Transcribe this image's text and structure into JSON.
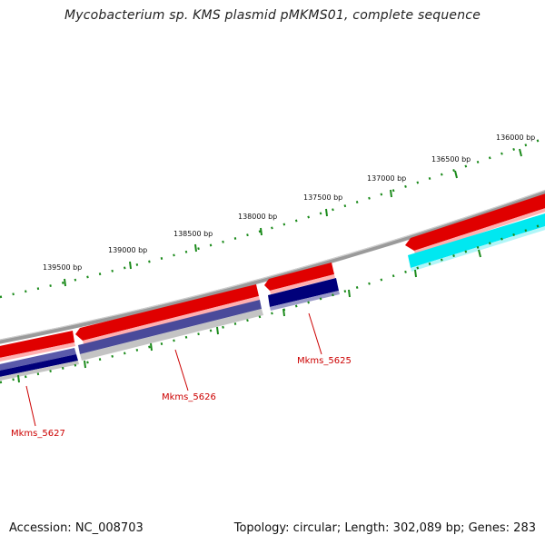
{
  "title": "Mycobacterium sp. KMS plasmid pMKMS01, complete sequence",
  "footer": {
    "accession": "Accession: NC_008703",
    "topology": "Topology: circular; Length: 302,089 bp; Genes: 283"
  },
  "colors": {
    "backbone": "#7a7a7a",
    "cds": "#e00000",
    "gene_navy": "#00007a",
    "gene_slate": "#4a4a9a",
    "gene_cyan": "#00e8f0",
    "shadow": "#bdbdbd",
    "tick": "#1a8a1a",
    "label": "#cc0000"
  },
  "scale_labels": {
    "l136000": "136000 bp",
    "l136500": "136500 bp",
    "l137000": "137000 bp",
    "l137500": "137500 bp",
    "l138000": "138000 bp",
    "l138500": "138500 bp",
    "l139000": "139000 bp",
    "l139500": "139500 bp"
  },
  "gene_labels": {
    "mkms_5625": "Mkms_5625",
    "mkms_5626": "Mkms_5626",
    "mkms_5627": "Mkms_5627"
  }
}
